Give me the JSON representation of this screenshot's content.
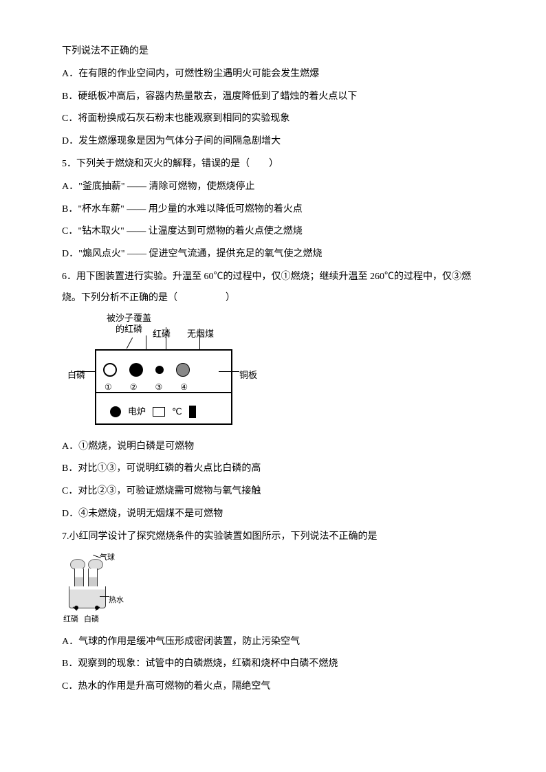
{
  "intro4": "下列说法不正确的是",
  "q4a": "A．在有限的作业空间内，可燃性粉尘遇明火可能会发生燃爆",
  "q4b": "B．硬纸板冲高后，容器内热量散去，温度降低到了蜡烛的着火点以下",
  "q4c": "C．将面粉换成石灰石粉末也能观察到相同的实验现象",
  "q4d": "D．发生燃爆现象是因为气体分子间的间隔急剧增大",
  "q5": "5．下列关于燃烧和灭火的解释，错误的是（　　）",
  "q5a": "A．\"釜底抽薪\" —— 清除可燃物，使燃烧停止",
  "q5b": "B．\"杯水车薪\" —— 用少量的水难以降低可燃物的着火点",
  "q5c": "C．\"钻木取火\" —— 让温度达到可燃物的着火点使之燃烧",
  "q5d": "D．\"煽风点火\" —— 促进空气流通，提供充足的氧气使之燃烧",
  "q6": "6．用下图装置进行实验。升温至 60℃的过程中，仅①燃烧；继续升温至 260℃的过程中，仅③燃烧。下列分析不正确的是（　　　　　）",
  "q6_labels": {
    "sand": "被沙子覆盖\n的红磷",
    "red": "红磷",
    "coal": "无烟煤",
    "white": "白磷",
    "copper": "铜板",
    "furnace": "电炉",
    "n1": "①",
    "n2": "②",
    "n3": "③",
    "n4": "④",
    "celsius": "℃"
  },
  "q6a": "A．①燃烧，说明白磷是可燃物",
  "q6b": "B．对比①③，可说明红磷的着火点比白磷的高",
  "q6c": "C．对比②③，可验证燃烧需可燃物与氧气接触",
  "q6d": "D．④未燃烧，说明无烟煤不是可燃物",
  "q7": "7.小红同学设计了探究燃烧条件的实验装置如图所示，下列说法不正确的是",
  "q7_labels": {
    "balloon": "气球",
    "hot": "热水",
    "red": "红磷",
    "white": "白磷"
  },
  "q7a": "A．气球的作用是缓冲气压形成密闭装置，防止污染空气",
  "q7b": "B．观察到的现象：试管中的白磷燃烧，红磷和烧杯中白磷不燃烧",
  "q7c": "C．热水的作用是升高可燃物的着火点，隔绝空气"
}
